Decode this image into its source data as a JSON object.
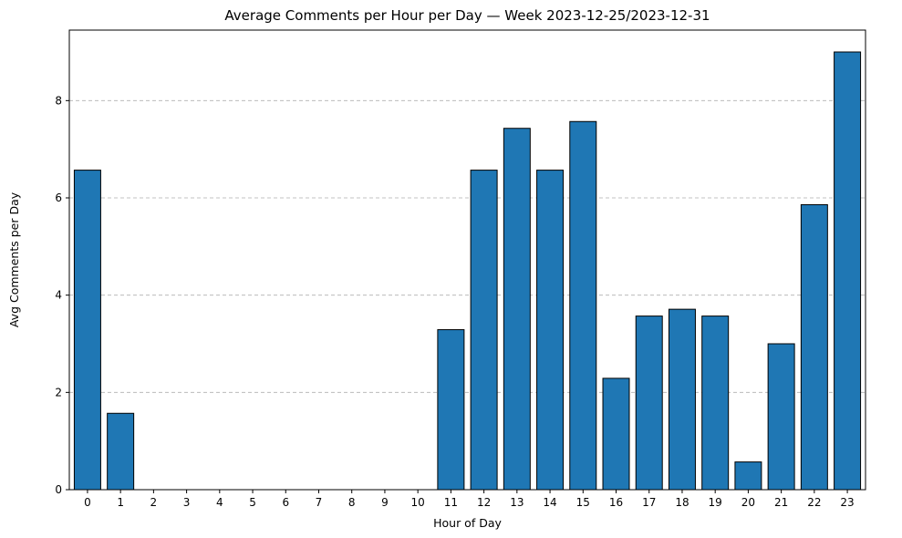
{
  "chart_data": {
    "type": "bar",
    "title": "Average Comments per Hour per Day — Week 2023-12-25/2023-12-31",
    "xlabel": "Hour of Day",
    "ylabel": "Avg Comments per Day",
    "categories": [
      "0",
      "1",
      "2",
      "3",
      "4",
      "5",
      "6",
      "7",
      "8",
      "9",
      "10",
      "11",
      "12",
      "13",
      "14",
      "15",
      "16",
      "17",
      "18",
      "19",
      "20",
      "21",
      "22",
      "23"
    ],
    "values": [
      6.57,
      1.57,
      0,
      0,
      0,
      0,
      0,
      0,
      0,
      0,
      0,
      3.29,
      6.57,
      7.43,
      6.57,
      7.57,
      2.29,
      3.57,
      3.71,
      3.57,
      0.57,
      3.0,
      5.86,
      9.0
    ],
    "ylim": [
      0,
      9.45
    ],
    "yticks": [
      0,
      2,
      4,
      6,
      8
    ],
    "grid": "y-dashed",
    "bar_color": "#1f77b4",
    "edge_color": "#000000"
  }
}
